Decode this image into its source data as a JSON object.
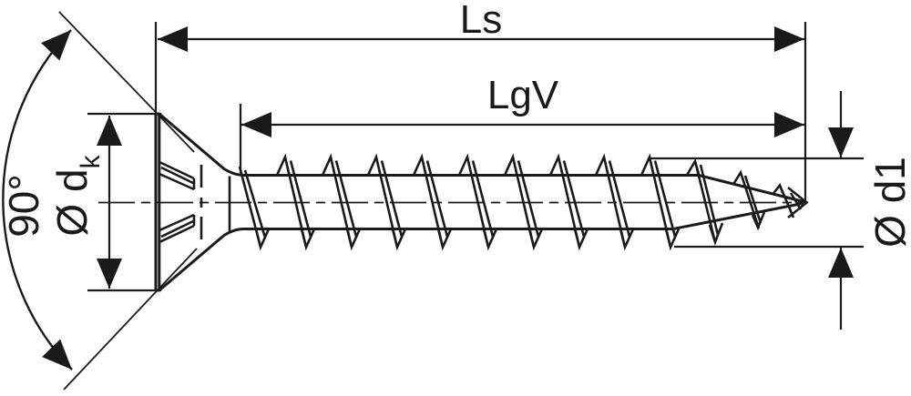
{
  "labels": {
    "total_length": "Ls",
    "thread_length": "LgV",
    "head_angle": "90°",
    "head_diameter_main": "Ø d",
    "head_diameter_sub": "k",
    "outer_thread_diameter": "Ø d1"
  },
  "colors": {
    "line": "#1a1a1a",
    "background": "#ffffff"
  }
}
